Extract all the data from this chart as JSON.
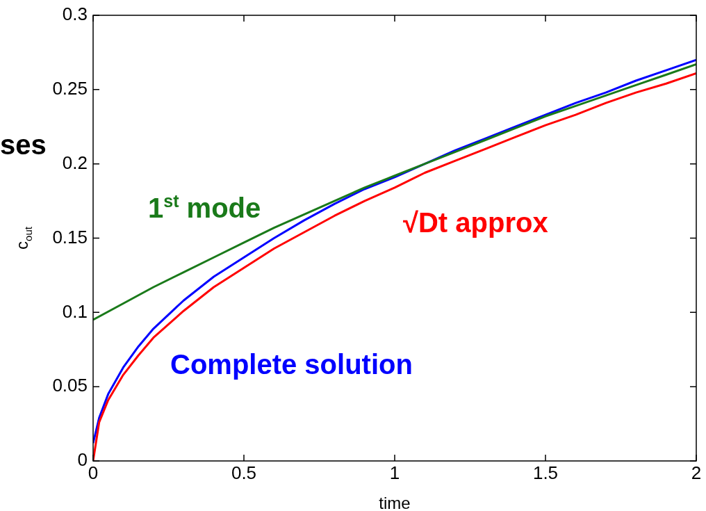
{
  "chart_data": {
    "type": "line",
    "xlabel": "time",
    "ylabel": "c$_{out}$",
    "annotations": [
      "ses"
    ],
    "xlim": [
      0,
      2
    ],
    "xticks": [
      0,
      0.5,
      1,
      1.5,
      2
    ],
    "ylim": [
      0,
      0.3
    ],
    "yticks": [
      0,
      0.05,
      0.1,
      0.15,
      0.2,
      0.25,
      0.3
    ],
    "grid": false,
    "legend": false,
    "marker": "none",
    "line_style": "solid",
    "series": [
      {
        "name": "1$^{st}$ mode",
        "color": "#1a7a1a",
        "x": [
          0,
          0.1,
          0.2,
          0.3,
          0.4,
          0.5,
          0.6,
          0.7,
          0.8,
          0.9,
          1.0,
          1.1,
          1.2,
          1.3,
          1.4,
          1.5,
          1.6,
          1.7,
          1.8,
          1.9,
          2.0
        ],
        "values": [
          0.095,
          0.106,
          0.117,
          0.127,
          0.137,
          0.147,
          0.157,
          0.166,
          0.175,
          0.184,
          0.192,
          0.2,
          0.208,
          0.216,
          0.224,
          0.232,
          0.239,
          0.246,
          0.253,
          0.26,
          0.267
        ]
      },
      {
        "name": "√Dt approx",
        "color": "#ff0000",
        "x": [
          0,
          0.02,
          0.05,
          0.1,
          0.15,
          0.2,
          0.3,
          0.4,
          0.5,
          0.6,
          0.7,
          0.8,
          0.9,
          1.0,
          1.1,
          1.2,
          1.3,
          1.4,
          1.5,
          1.6,
          1.7,
          1.8,
          1.9,
          2.0
        ],
        "values": [
          0,
          0.026,
          0.041,
          0.058,
          0.071,
          0.083,
          0.101,
          0.117,
          0.13,
          0.143,
          0.154,
          0.165,
          0.175,
          0.184,
          0.194,
          0.202,
          0.21,
          0.218,
          0.226,
          0.233,
          0.241,
          0.248,
          0.254,
          0.261
        ]
      },
      {
        "name": "Complete solution",
        "color": "#0000ff",
        "x": [
          0,
          0.02,
          0.05,
          0.1,
          0.15,
          0.2,
          0.3,
          0.4,
          0.5,
          0.6,
          0.7,
          0.8,
          0.9,
          1.0,
          1.1,
          1.2,
          1.3,
          1.4,
          1.5,
          1.6,
          1.7,
          1.8,
          1.9,
          2.0
        ],
        "values": [
          0.012,
          0.029,
          0.045,
          0.063,
          0.077,
          0.089,
          0.108,
          0.124,
          0.137,
          0.15,
          0.162,
          0.173,
          0.183,
          0.191,
          0.2,
          0.209,
          0.217,
          0.225,
          0.233,
          0.241,
          0.248,
          0.256,
          0.263,
          0.27
        ]
      }
    ]
  }
}
